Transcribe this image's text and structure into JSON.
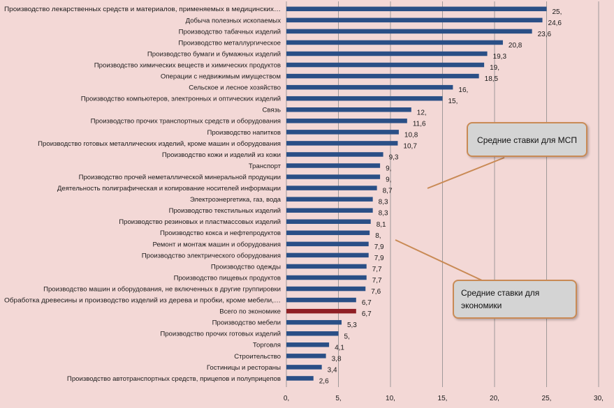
{
  "chart_data": {
    "type": "bar",
    "orientation": "horizontal",
    "xlim": [
      0,
      30
    ],
    "xticks": [
      0,
      5,
      10,
      15,
      20,
      25,
      30
    ],
    "xtick_labels": [
      "0,",
      "5,",
      "10,",
      "15,",
      "20,",
      "25,",
      "30,"
    ],
    "grid": "vertical",
    "bar_color": "#2a4f86",
    "highlight_color": "#8f1f25",
    "categories": [
      {
        "label": "Производство лекарственных средств и материалов, применяемых в медицинских…",
        "value": 25,
        "value_label": "25,"
      },
      {
        "label": "Добыча полезных ископаемых",
        "value": 24.6,
        "value_label": "24,6"
      },
      {
        "label": "Производство табачных изделий",
        "value": 23.6,
        "value_label": "23,6"
      },
      {
        "label": "Производство металлургическое",
        "value": 20.8,
        "value_label": "20,8"
      },
      {
        "label": "Производство бумаги и бумажных изделий",
        "value": 19.3,
        "value_label": "19,3"
      },
      {
        "label": "Производство химических веществ и химических продуктов",
        "value": 19,
        "value_label": "19,"
      },
      {
        "label": "Операции с недвижимым имуществом",
        "value": 18.5,
        "value_label": "18,5"
      },
      {
        "label": "Сельское и лесное хозяйство",
        "value": 16,
        "value_label": "16,"
      },
      {
        "label": "Производство компьютеров, электронных и оптических изделий",
        "value": 15,
        "value_label": "15,"
      },
      {
        "label": "Связь",
        "value": 12,
        "value_label": "12,"
      },
      {
        "label": "Производство прочих транспортных средств и оборудования",
        "value": 11.6,
        "value_label": "11,6"
      },
      {
        "label": "Производство напитков",
        "value": 10.8,
        "value_label": "10,8"
      },
      {
        "label": "Производство готовых металлических изделий, кроме машин и оборудования",
        "value": 10.7,
        "value_label": "10,7"
      },
      {
        "label": "Производство кожи и изделий из кожи",
        "value": 9.3,
        "value_label": "9,3"
      },
      {
        "label": "Транспорт",
        "value": 9,
        "value_label": "9,"
      },
      {
        "label": "Производство прочей неметаллической минеральной продукции",
        "value": 9,
        "value_label": "9,"
      },
      {
        "label": "Деятельность полиграфическая и копирование носителей информации",
        "value": 8.7,
        "value_label": "8,7"
      },
      {
        "label": "Электроэнергетика, газ, вода",
        "value": 8.3,
        "value_label": "8,3"
      },
      {
        "label": "Производство текстильных изделий",
        "value": 8.3,
        "value_label": "8,3"
      },
      {
        "label": "Производство резиновых и пластмассовых изделий",
        "value": 8.1,
        "value_label": "8,1"
      },
      {
        "label": "Производство кокса и нефтепродуктов",
        "value": 8,
        "value_label": "8,"
      },
      {
        "label": "Ремонт и монтаж машин и оборудования",
        "value": 7.9,
        "value_label": "7,9"
      },
      {
        "label": "Производство электрического оборудования",
        "value": 7.9,
        "value_label": "7,9"
      },
      {
        "label": "Производство одежды",
        "value": 7.7,
        "value_label": "7,7"
      },
      {
        "label": "Производство пищевых продуктов",
        "value": 7.7,
        "value_label": "7,7"
      },
      {
        "label": "Производство машин и оборудования, не включенных в другие группировки",
        "value": 7.6,
        "value_label": "7,6"
      },
      {
        "label": "Обработка древесины и производство изделий из дерева и пробки, кроме мебели,…",
        "value": 6.7,
        "value_label": "6,7"
      },
      {
        "label": "Всего по экономике",
        "value": 6.7,
        "value_label": "6,7",
        "highlight": true
      },
      {
        "label": "Производство мебели",
        "value": 5.3,
        "value_label": "5,3"
      },
      {
        "label": "Производство прочих готовых изделий",
        "value": 5,
        "value_label": "5,"
      },
      {
        "label": "Торговля",
        "value": 4.1,
        "value_label": "4,1"
      },
      {
        "label": "Строительство",
        "value": 3.8,
        "value_label": "3,8"
      },
      {
        "label": "Гостиницы и рестораны",
        "value": 3.4,
        "value_label": "3,4"
      },
      {
        "label": "Производство автотранспортных средств, прицепов и полуприцепов",
        "value": 2.6,
        "value_label": "2,6"
      }
    ],
    "annotations": {
      "msp": "Средние ставки для МСП",
      "economy": "Средние ставки для экономики"
    }
  }
}
